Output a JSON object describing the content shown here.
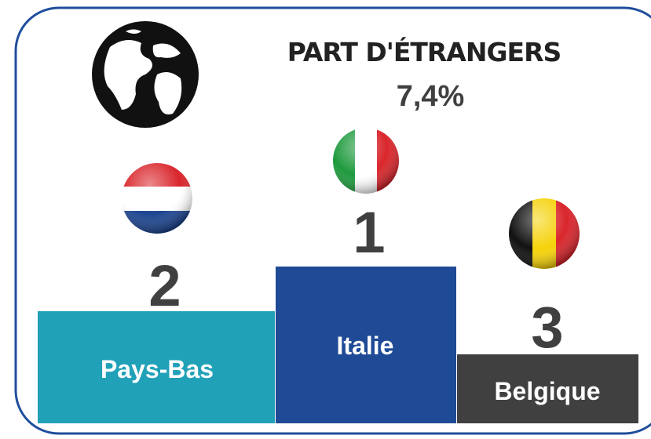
{
  "header": {
    "title": "PART D'ÉTRANGERS",
    "value": "7,4%"
  },
  "podium": [
    {
      "rank": 2,
      "label": "Pays-Bas"
    },
    {
      "rank": 1,
      "label": "Italie"
    },
    {
      "rank": 3,
      "label": "Belgique"
    }
  ]
}
